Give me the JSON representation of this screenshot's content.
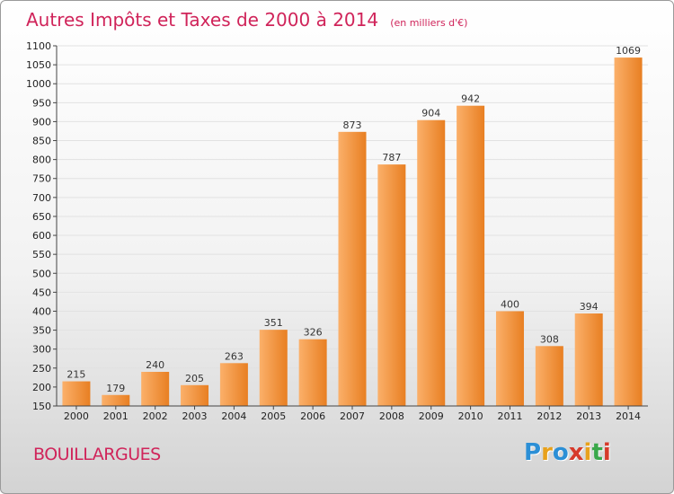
{
  "chart_data": {
    "type": "bar",
    "title": "Autres Impôts et Taxes de 2000 à 2014",
    "unit": "(en milliers d'€)",
    "categories": [
      "2000",
      "2001",
      "2002",
      "2003",
      "2004",
      "2005",
      "2006",
      "2007",
      "2008",
      "2009",
      "2010",
      "2011",
      "2012",
      "2013",
      "2014"
    ],
    "values": [
      215,
      179,
      240,
      205,
      263,
      351,
      326,
      873,
      787,
      904,
      942,
      400,
      308,
      394,
      1069
    ],
    "ylim": [
      150,
      1100
    ],
    "ytick_step": 50,
    "grid": true,
    "xlabel": "",
    "ylabel": ""
  },
  "commune": "BOUILLARGUES",
  "logo": {
    "letters": [
      "P",
      "r",
      "o",
      "x",
      "i",
      "t",
      "i"
    ],
    "colors": [
      "#2b8fd6",
      "#e8a11c",
      "#2b8fd6",
      "#d63a2b",
      "#e8a11c",
      "#3aa84a",
      "#d63a2b"
    ]
  },
  "colors": {
    "accent": "#d0245a",
    "bar_light": "#f9a65a",
    "bar_dark": "#e07d22"
  }
}
